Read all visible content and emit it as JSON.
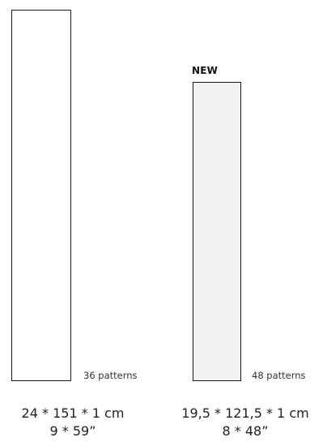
{
  "products": [
    {
      "badge": "",
      "pattern_count": "36 patterns",
      "dimensions_metric": "24 * 151 * 1 cm",
      "dimensions_imperial": "9 * 59”",
      "tile_color": "#ffffff"
    },
    {
      "badge": "NEW",
      "pattern_count": "48 patterns",
      "dimensions_metric": "19,5 * 121,5 * 1 cm",
      "dimensions_imperial": "8 * 48”",
      "tile_color": "#f1f1f1"
    }
  ]
}
